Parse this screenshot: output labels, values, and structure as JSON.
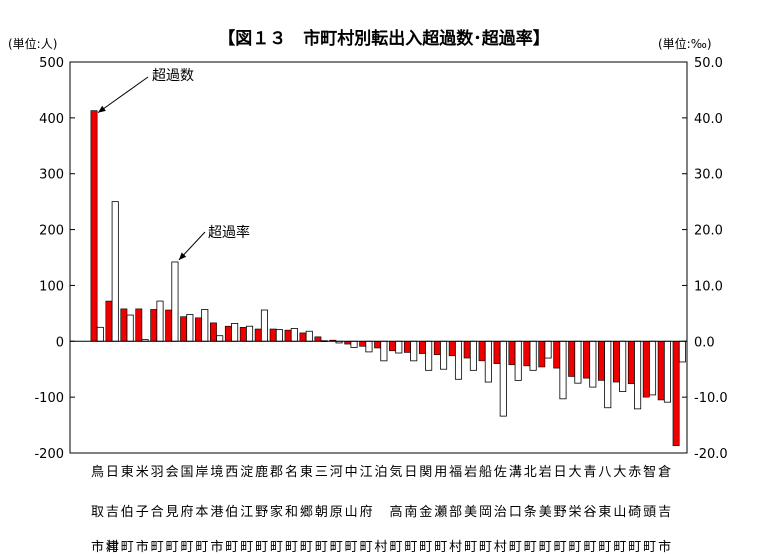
{
  "chart_data": {
    "type": "bar",
    "title": "【図１３　市町村別転出入超過数･超過率】",
    "left_unit": "(単位:人)",
    "right_unit": "(単位:‰)",
    "ylim": [
      -200,
      500
    ],
    "y2lim": [
      -20,
      50
    ],
    "y_ticks": [
      "500",
      "400",
      "300",
      "200",
      "100",
      "0",
      "-100",
      "-200"
    ],
    "y2_ticks": [
      "50.0",
      "40.0",
      "30.0",
      "20.0",
      "10.0",
      "0.0",
      "-10.0",
      "-20.0"
    ],
    "series": [
      {
        "name": "超過数",
        "color": "#ee0000",
        "axis": "left",
        "values": [
          413,
          72,
          58,
          58,
          57,
          56,
          44,
          42,
          33,
          27,
          25,
          22,
          22,
          20,
          15,
          8,
          2,
          -5,
          -9,
          -12,
          -17,
          -20,
          -22,
          -24,
          -26,
          -30,
          -35,
          -40,
          -42,
          -44,
          -46,
          -48,
          -63,
          -66,
          -70,
          -73,
          -76,
          -100,
          -105,
          -187
        ]
      },
      {
        "name": "超過率",
        "color": "#ffffff",
        "axis": "right",
        "values": [
          2.5,
          25.0,
          4.7,
          0.3,
          7.2,
          14.2,
          4.8,
          5.7,
          1.0,
          3.2,
          2.7,
          5.6,
          2.1,
          2.3,
          1.8,
          0.1,
          -0.3,
          -1.1,
          -1.9,
          -3.5,
          -2.1,
          -3.5,
          -5.2,
          -5.0,
          -6.8,
          -5.2,
          -7.3,
          -13.4,
          -7.0,
          -5.2,
          -3.0,
          -10.3,
          -7.5,
          -8.2,
          -11.9,
          -9.0,
          -12.1,
          -9.6,
          -10.9,
          -3.7
        ]
      }
    ],
    "categories": [
      [
        "鳥",
        "取",
        "市"
      ],
      [
        "日",
        "吉",
        "津",
        "村"
      ],
      [
        "東",
        "伯",
        "町"
      ],
      [
        "米",
        "子",
        "市"
      ],
      [
        "羽",
        "合",
        "町"
      ],
      [
        "会",
        "見",
        "町"
      ],
      [
        "国",
        "府",
        "町"
      ],
      [
        "岸",
        "本",
        "町"
      ],
      [
        "境",
        "港",
        "市"
      ],
      [
        "西",
        "伯",
        "町"
      ],
      [
        "淀",
        "江",
        "町"
      ],
      [
        "鹿",
        "野",
        "町"
      ],
      [
        "郡",
        "家",
        "町"
      ],
      [
        "名",
        "和",
        "町"
      ],
      [
        "東",
        "郷",
        "町"
      ],
      [
        "三",
        "朝",
        "町"
      ],
      [
        "河",
        "原",
        "町"
      ],
      [
        "中",
        "山",
        "町"
      ],
      [
        "江",
        "府",
        "町"
      ],
      [
        "泊",
        "",
        "村"
      ],
      [
        "気",
        "高",
        "町"
      ],
      [
        "日",
        "南",
        "町"
      ],
      [
        "関",
        "金",
        "町"
      ],
      [
        "用",
        "瀬",
        "町"
      ],
      [
        "福",
        "部",
        "村"
      ],
      [
        "岩",
        "美",
        "町"
      ],
      [
        "船",
        "岡",
        "町"
      ],
      [
        "佐",
        "治",
        "村"
      ],
      [
        "溝",
        "口",
        "町"
      ],
      [
        "北",
        "条",
        "町"
      ],
      [
        "岩",
        "美",
        "町"
      ],
      [
        "日",
        "野",
        "町"
      ],
      [
        "大",
        "栄",
        "町"
      ],
      [
        "青",
        "谷",
        "町"
      ],
      [
        "八",
        "東",
        "町"
      ],
      [
        "大",
        "山",
        "町"
      ],
      [
        "赤",
        "碕",
        "町"
      ],
      [
        "智",
        "頭",
        "町"
      ],
      [
        "倉",
        "吉",
        "市"
      ],
      [
        "",
        "",
        ""
      ]
    ],
    "annotations": [
      {
        "text": "超過数",
        "series": 0,
        "index": 0
      },
      {
        "text": "超過率",
        "series": 1,
        "index": 5
      }
    ],
    "legend": "none",
    "grid": false
  }
}
